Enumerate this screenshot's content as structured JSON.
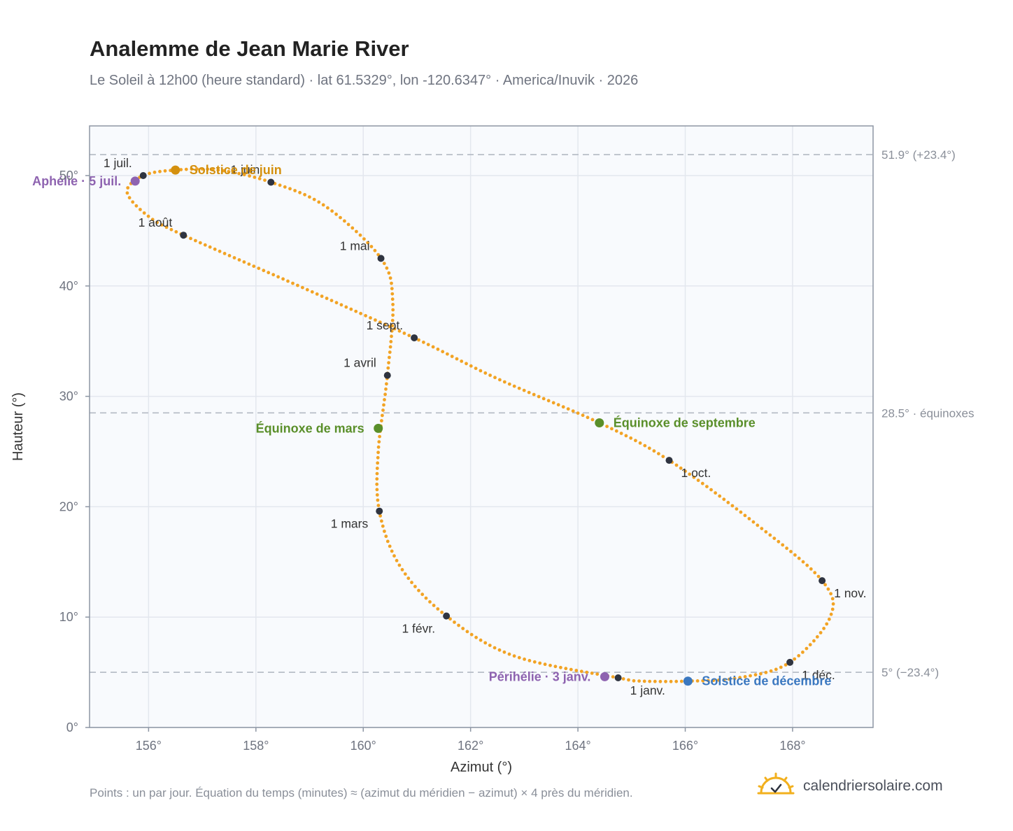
{
  "header": {
    "title": "Analemme de Jean Marie River",
    "subtitle": "Le Soleil à 12h00 (heure standard) · lat 61.5329°, lon -120.6347° · America/Inuvik · 2026"
  },
  "footer": {
    "note": "Points : un par jour. Équation du temps (minutes) ≈ (azimut du méridien − azimut) × 4 près du méridien.",
    "brand": "calendriersolaire.com"
  },
  "colors": {
    "curve": "#f2a324",
    "month_dot": "#2f3440",
    "june": "#d4900e",
    "equinox": "#5a8f2a",
    "december": "#3b78c0",
    "apsis": "#8e63b0",
    "plot_bg": "#f8fafd",
    "grid": "#e3e7ee",
    "frame": "#8d96a4",
    "reference": "#b8bec8"
  },
  "chart_data": {
    "type": "scatter",
    "title": "Analemme de Jean Marie River",
    "xlabel": "Azimut (°)",
    "ylabel": "Hauteur (°)",
    "xlim": [
      154.9,
      169.5
    ],
    "ylim": [
      0,
      54.5
    ],
    "grid": true,
    "x_ticks": [
      156,
      158,
      160,
      162,
      164,
      166,
      168
    ],
    "x_tick_labels": [
      "156°",
      "158°",
      "160°",
      "162°",
      "164°",
      "166°",
      "168°"
    ],
    "y_ticks": [
      0,
      10,
      20,
      30,
      40,
      50
    ],
    "y_tick_labels": [
      "0°",
      "10°",
      "20°",
      "30°",
      "40°",
      "50°"
    ],
    "reference_lines": [
      {
        "y": 51.9,
        "label": "51.9° (+23.4°)"
      },
      {
        "y": 28.5,
        "label": "28.5° · équinoxes"
      },
      {
        "y": 5.0,
        "label": "5° (−23.4°)"
      }
    ],
    "path_anchors": [
      {
        "x": 164.75,
        "y": 4.5
      },
      {
        "x": 162.8,
        "y": 6.5
      },
      {
        "x": 161.55,
        "y": 10.1
      },
      {
        "x": 160.7,
        "y": 14.5
      },
      {
        "x": 160.3,
        "y": 19.6
      },
      {
        "x": 160.28,
        "y": 25.0
      },
      {
        "x": 160.45,
        "y": 31.9
      },
      {
        "x": 160.55,
        "y": 38.5
      },
      {
        "x": 160.33,
        "y": 42.5
      },
      {
        "x": 159.3,
        "y": 47.2
      },
      {
        "x": 158.28,
        "y": 49.4
      },
      {
        "x": 157.3,
        "y": 50.5
      },
      {
        "x": 156.5,
        "y": 50.5
      },
      {
        "x": 155.9,
        "y": 50.0
      },
      {
        "x": 155.6,
        "y": 48.5
      },
      {
        "x": 156.0,
        "y": 46.3
      },
      {
        "x": 156.65,
        "y": 44.6
      },
      {
        "x": 158.8,
        "y": 40.0
      },
      {
        "x": 160.95,
        "y": 35.3
      },
      {
        "x": 162.5,
        "y": 31.6
      },
      {
        "x": 164.4,
        "y": 27.6
      },
      {
        "x": 165.7,
        "y": 24.2
      },
      {
        "x": 167.3,
        "y": 18.5
      },
      {
        "x": 168.55,
        "y": 13.3
      },
      {
        "x": 168.7,
        "y": 10.0
      },
      {
        "x": 167.95,
        "y": 5.9
      },
      {
        "x": 167.0,
        "y": 4.5
      },
      {
        "x": 166.05,
        "y": 4.2
      },
      {
        "x": 165.2,
        "y": 4.2
      },
      {
        "x": 164.75,
        "y": 4.5
      }
    ],
    "months": [
      {
        "label": "1 janv.",
        "x": 164.75,
        "y": 4.5,
        "anchor": "below-right"
      },
      {
        "label": "1 févr.",
        "x": 161.55,
        "y": 10.1,
        "anchor": "below-left"
      },
      {
        "label": "1 mars",
        "x": 160.3,
        "y": 19.6,
        "anchor": "below-left"
      },
      {
        "label": "1 avril",
        "x": 160.45,
        "y": 31.9,
        "anchor": "above-left"
      },
      {
        "label": "1 mai",
        "x": 160.33,
        "y": 42.5,
        "anchor": "above-left"
      },
      {
        "label": "1 juin",
        "x": 158.28,
        "y": 49.4,
        "anchor": "above-left"
      },
      {
        "label": "1 juil.",
        "x": 155.9,
        "y": 50.0,
        "anchor": "above-left"
      },
      {
        "label": "1 août",
        "x": 156.65,
        "y": 44.6,
        "anchor": "above-left"
      },
      {
        "label": "1 sept.",
        "x": 160.95,
        "y": 35.3,
        "anchor": "above-left"
      },
      {
        "label": "1 oct.",
        "x": 165.7,
        "y": 24.2,
        "anchor": "below-right"
      },
      {
        "label": "1 nov.",
        "x": 168.55,
        "y": 13.3,
        "anchor": "below-right"
      },
      {
        "label": "1 déc.",
        "x": 167.95,
        "y": 5.9,
        "anchor": "below-right"
      }
    ],
    "events": [
      {
        "label": "Solstice de juin",
        "x": 156.5,
        "y": 50.5,
        "color": "#d4900e",
        "side": "right"
      },
      {
        "label": "Aphélie · 5 juil.",
        "x": 155.75,
        "y": 49.5,
        "color": "#8e63b0",
        "side": "left"
      },
      {
        "label": "Équinoxe de mars",
        "x": 160.28,
        "y": 27.1,
        "color": "#5a8f2a",
        "side": "left"
      },
      {
        "label": "Équinoxe de septembre",
        "x": 164.4,
        "y": 27.6,
        "color": "#5a8f2a",
        "side": "right"
      },
      {
        "label": "Périhélie · 3 janv.",
        "x": 164.5,
        "y": 4.6,
        "color": "#8e63b0",
        "side": "left"
      },
      {
        "label": "Solstice de décembre",
        "x": 166.05,
        "y": 4.2,
        "color": "#3b78c0",
        "side": "right"
      }
    ]
  }
}
